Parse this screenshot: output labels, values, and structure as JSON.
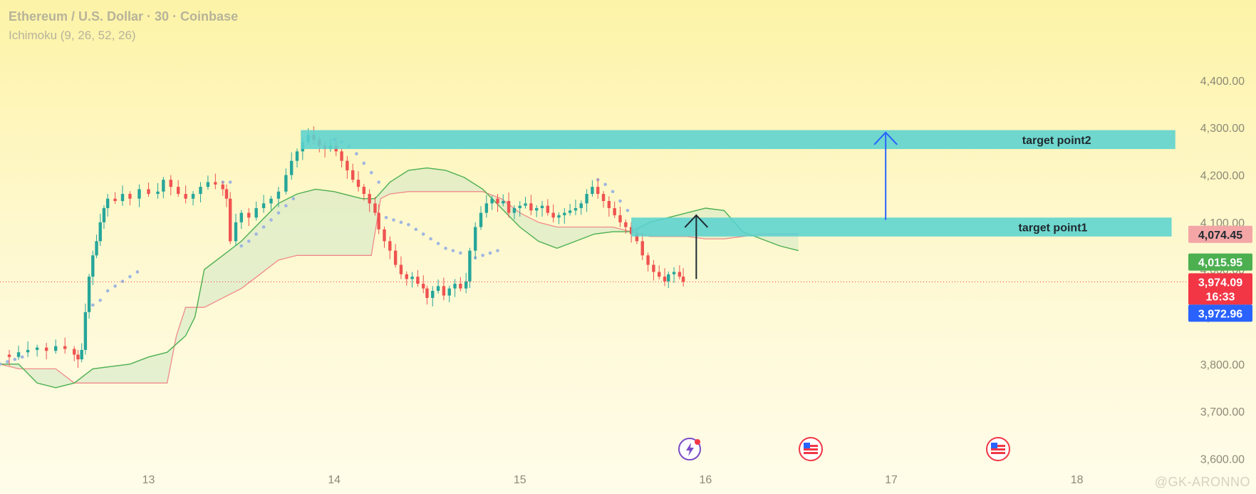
{
  "header": {
    "title": "Ethereum / U.S. Dollar · 30 · Coinbase",
    "indicator": "Ichimoku (9, 26, 52, 26)"
  },
  "watermark": "@GK-ARONNO",
  "colors": {
    "bull": "#26a69a",
    "bear": "#ef5350",
    "zone": "#5bd3cf",
    "kumo_fill": "#cfe8c5",
    "leading_a": "#4caf50",
    "leading_b": "#f08a8a",
    "psar": "#9fb6e0",
    "arrow_blue": "#2962ff",
    "arrow_dark": "#1f2a30",
    "tag_red": "#f23645",
    "tag_blue": "#2962ff",
    "tag_green": "#4caf50",
    "tag_pink": "#f4a6a6"
  },
  "chart_data": {
    "type": "candlestick",
    "symbol": "Ethereum / U.S. Dollar",
    "interval": "30",
    "exchange": "Coinbase",
    "indicator": "Ichimoku (9, 26, 52, 26)",
    "x_ticks": [
      "13",
      "14",
      "15",
      "16",
      "17",
      "18"
    ],
    "y_ticks": [
      "3,600.00",
      "3,700.00",
      "3,800.00",
      "3,900.00",
      "4,000.00",
      "4,100.00",
      "4,200.00",
      "4,300.00",
      "4,400.00"
    ],
    "y_tick_values": [
      3600,
      3700,
      3800,
      3900,
      4000,
      4100,
      4200,
      4300,
      4400
    ],
    "ylim": [
      3590,
      4510
    ],
    "xlim": [
      12.2,
      18.6
    ],
    "price_tags": [
      {
        "label": "4,074.45",
        "value": 4074.45,
        "style": "pink"
      },
      {
        "label": "4,015.95",
        "value": 4015.95,
        "style": "green"
      },
      {
        "label": "3,974.09",
        "sub": "16:33",
        "value": 3974.09,
        "style": "red"
      },
      {
        "label": "3,972.96",
        "value": 3972.96,
        "style": "blue"
      }
    ],
    "current_price": 3974.09,
    "zones": [
      {
        "name": "target point2",
        "from_x": 13.82,
        "to_x": 18.53,
        "low": 4255,
        "high": 4295
      },
      {
        "name": "target point1",
        "from_x": 15.6,
        "to_x": 18.51,
        "low": 4070,
        "high": 4110
      }
    ],
    "arrows": [
      {
        "color": "dark",
        "x": 15.95,
        "from": 3980,
        "to": 4115
      },
      {
        "color": "blue",
        "x": 16.97,
        "from": 4105,
        "to": 4290
      }
    ],
    "closes": [
      [
        12.2,
        3820
      ],
      [
        12.25,
        3815
      ],
      [
        12.3,
        3825
      ],
      [
        12.35,
        3830
      ],
      [
        12.4,
        3835
      ],
      [
        12.45,
        3828
      ],
      [
        12.5,
        3838
      ],
      [
        12.55,
        3832
      ],
      [
        12.6,
        3820
      ],
      [
        12.62,
        3810
      ],
      [
        12.64,
        3830
      ],
      [
        12.66,
        3910
      ],
      [
        12.68,
        3985
      ],
      [
        12.7,
        4030
      ],
      [
        12.72,
        4060
      ],
      [
        12.74,
        4100
      ],
      [
        12.76,
        4130
      ],
      [
        12.78,
        4150
      ],
      [
        12.82,
        4145
      ],
      [
        12.86,
        4160
      ],
      [
        12.9,
        4150
      ],
      [
        12.95,
        4170
      ],
      [
        13.0,
        4160
      ],
      [
        13.05,
        4165
      ],
      [
        13.08,
        4190
      ],
      [
        13.12,
        4175
      ],
      [
        13.16,
        4160
      ],
      [
        13.2,
        4150
      ],
      [
        13.24,
        4160
      ],
      [
        13.28,
        4175
      ],
      [
        13.32,
        4185
      ],
      [
        13.36,
        4180
      ],
      [
        13.4,
        4170
      ],
      [
        13.42,
        4150
      ],
      [
        13.44,
        4060
      ],
      [
        13.47,
        4100
      ],
      [
        13.5,
        4120
      ],
      [
        13.54,
        4110
      ],
      [
        13.58,
        4130
      ],
      [
        13.62,
        4140
      ],
      [
        13.66,
        4150
      ],
      [
        13.7,
        4165
      ],
      [
        13.74,
        4200
      ],
      [
        13.77,
        4230
      ],
      [
        13.8,
        4250
      ],
      [
        13.83,
        4270
      ],
      [
        13.86,
        4285
      ],
      [
        13.89,
        4275
      ],
      [
        13.92,
        4262
      ],
      [
        13.95,
        4255
      ],
      [
        13.98,
        4262
      ],
      [
        14.01,
        4250
      ],
      [
        14.04,
        4230
      ],
      [
        14.07,
        4210
      ],
      [
        14.1,
        4190
      ],
      [
        14.13,
        4175
      ],
      [
        14.16,
        4160
      ],
      [
        14.19,
        4140
      ],
      [
        14.22,
        4120
      ],
      [
        14.24,
        4085
      ],
      [
        14.27,
        4060
      ],
      [
        14.3,
        4040
      ],
      [
        14.33,
        4010
      ],
      [
        14.36,
        3990
      ],
      [
        14.39,
        3980
      ],
      [
        14.42,
        3985
      ],
      [
        14.45,
        3970
      ],
      [
        14.48,
        3960
      ],
      [
        14.5,
        3940
      ],
      [
        14.53,
        3955
      ],
      [
        14.56,
        3965
      ],
      [
        14.59,
        3945
      ],
      [
        14.62,
        3960
      ],
      [
        14.65,
        3970
      ],
      [
        14.68,
        3960
      ],
      [
        14.71,
        3975
      ],
      [
        14.73,
        4040
      ],
      [
        14.76,
        4090
      ],
      [
        14.79,
        4120
      ],
      [
        14.82,
        4140
      ],
      [
        14.85,
        4150
      ],
      [
        14.88,
        4140
      ],
      [
        14.91,
        4145
      ],
      [
        14.94,
        4120
      ],
      [
        14.97,
        4130
      ],
      [
        15.0,
        4135
      ],
      [
        15.03,
        4140
      ],
      [
        15.06,
        4125
      ],
      [
        15.09,
        4130
      ],
      [
        15.12,
        4135
      ],
      [
        15.15,
        4120
      ],
      [
        15.18,
        4110
      ],
      [
        15.21,
        4115
      ],
      [
        15.24,
        4120
      ],
      [
        15.27,
        4125
      ],
      [
        15.3,
        4130
      ],
      [
        15.33,
        4140
      ],
      [
        15.36,
        4160
      ],
      [
        15.39,
        4175
      ],
      [
        15.42,
        4160
      ],
      [
        15.45,
        4145
      ],
      [
        15.48,
        4130
      ],
      [
        15.51,
        4115
      ],
      [
        15.54,
        4100
      ],
      [
        15.57,
        4090
      ],
      [
        15.6,
        4075
      ],
      [
        15.63,
        4060
      ],
      [
        15.66,
        4030
      ],
      [
        15.69,
        4010
      ],
      [
        15.72,
        3995
      ],
      [
        15.75,
        3985
      ],
      [
        15.78,
        3975
      ],
      [
        15.8,
        3990
      ],
      [
        15.83,
        3995
      ],
      [
        15.86,
        3985
      ],
      [
        15.88,
        3974
      ]
    ],
    "psar_dots": [
      [
        12.2,
        3800
      ],
      [
        12.24,
        3805
      ],
      [
        12.28,
        3810
      ],
      [
        12.32,
        3815
      ],
      [
        12.7,
        3925
      ],
      [
        12.74,
        3935
      ],
      [
        12.78,
        3955
      ],
      [
        12.82,
        3965
      ],
      [
        12.86,
        3975
      ],
      [
        12.9,
        3985
      ],
      [
        12.94,
        3995
      ],
      [
        13.4,
        4185
      ],
      [
        13.44,
        4185
      ],
      [
        13.5,
        4050
      ],
      [
        13.54,
        4060
      ],
      [
        13.58,
        4075
      ],
      [
        13.62,
        4090
      ],
      [
        13.66,
        4105
      ],
      [
        13.7,
        4120
      ],
      [
        13.74,
        4135
      ],
      [
        13.78,
        4150
      ],
      [
        14.0,
        4275
      ],
      [
        14.04,
        4270
      ],
      [
        14.08,
        4260
      ],
      [
        14.12,
        4245
      ],
      [
        14.16,
        4225
      ],
      [
        14.2,
        4205
      ],
      [
        14.24,
        4185
      ],
      [
        14.28,
        4110
      ],
      [
        14.32,
        4105
      ],
      [
        14.36,
        4100
      ],
      [
        14.4,
        4095
      ],
      [
        14.44,
        4085
      ],
      [
        14.48,
        4075
      ],
      [
        14.52,
        4065
      ],
      [
        14.56,
        4055
      ],
      [
        14.6,
        4045
      ],
      [
        14.64,
        4040
      ],
      [
        14.68,
        4035
      ],
      [
        14.76,
        4025
      ],
      [
        14.8,
        4030
      ],
      [
        14.84,
        4035
      ],
      [
        14.88,
        4040
      ],
      [
        15.42,
        4190
      ],
      [
        15.46,
        4180
      ],
      [
        15.5,
        4165
      ],
      [
        15.54,
        4145
      ],
      [
        15.58,
        4125
      ]
    ],
    "leading_span_a": [
      [
        12.2,
        3800
      ],
      [
        12.3,
        3800
      ],
      [
        12.4,
        3760
      ],
      [
        12.5,
        3750
      ],
      [
        12.6,
        3760
      ],
      [
        12.7,
        3790
      ],
      [
        12.8,
        3795
      ],
      [
        12.9,
        3800
      ],
      [
        13.0,
        3815
      ],
      [
        13.1,
        3825
      ],
      [
        13.2,
        3860
      ],
      [
        13.25,
        3900
      ],
      [
        13.3,
        4000
      ],
      [
        13.4,
        4030
      ],
      [
        13.5,
        4060
      ],
      [
        13.6,
        4100
      ],
      [
        13.7,
        4140
      ],
      [
        13.8,
        4160
      ],
      [
        13.9,
        4170
      ],
      [
        14.0,
        4165
      ],
      [
        14.1,
        4155
      ],
      [
        14.15,
        4150
      ],
      [
        14.22,
        4150
      ],
      [
        14.3,
        4185
      ],
      [
        14.4,
        4210
      ],
      [
        14.5,
        4215
      ],
      [
        14.6,
        4210
      ],
      [
        14.7,
        4195
      ],
      [
        14.8,
        4170
      ],
      [
        14.9,
        4130
      ],
      [
        15.0,
        4090
      ],
      [
        15.1,
        4060
      ],
      [
        15.2,
        4045
      ],
      [
        15.3,
        4060
      ],
      [
        15.4,
        4075
      ],
      [
        15.5,
        4080
      ],
      [
        15.6,
        4080
      ],
      [
        15.7,
        4100
      ],
      [
        15.8,
        4110
      ],
      [
        15.9,
        4120
      ],
      [
        16.0,
        4130
      ],
      [
        16.1,
        4125
      ],
      [
        16.2,
        4080
      ],
      [
        16.3,
        4065
      ],
      [
        16.4,
        4050
      ],
      [
        16.5,
        4040
      ]
    ],
    "leading_span_b": [
      [
        12.2,
        3800
      ],
      [
        12.3,
        3790
      ],
      [
        12.4,
        3790
      ],
      [
        12.5,
        3790
      ],
      [
        12.6,
        3760
      ],
      [
        12.7,
        3760
      ],
      [
        12.8,
        3760
      ],
      [
        12.9,
        3760
      ],
      [
        13.0,
        3760
      ],
      [
        13.1,
        3760
      ],
      [
        13.15,
        3860
      ],
      [
        13.2,
        3920
      ],
      [
        13.3,
        3920
      ],
      [
        13.4,
        3940
      ],
      [
        13.5,
        3960
      ],
      [
        13.6,
        3990
      ],
      [
        13.7,
        4020
      ],
      [
        13.8,
        4030
      ],
      [
        13.9,
        4030
      ],
      [
        14.0,
        4030
      ],
      [
        14.1,
        4030
      ],
      [
        14.2,
        4030
      ],
      [
        14.25,
        4150
      ],
      [
        14.3,
        4160
      ],
      [
        14.4,
        4165
      ],
      [
        14.5,
        4165
      ],
      [
        14.6,
        4165
      ],
      [
        14.7,
        4165
      ],
      [
        14.8,
        4165
      ],
      [
        14.9,
        4150
      ],
      [
        15.0,
        4120
      ],
      [
        15.1,
        4100
      ],
      [
        15.2,
        4090
      ],
      [
        15.3,
        4090
      ],
      [
        15.4,
        4090
      ],
      [
        15.5,
        4090
      ],
      [
        15.6,
        4080
      ],
      [
        15.7,
        4070
      ],
      [
        15.8,
        4070
      ],
      [
        15.9,
        4070
      ],
      [
        16.0,
        4065
      ],
      [
        16.1,
        4065
      ],
      [
        16.2,
        4070
      ],
      [
        16.3,
        4075
      ],
      [
        16.4,
        4075
      ],
      [
        16.5,
        4075
      ]
    ]
  }
}
